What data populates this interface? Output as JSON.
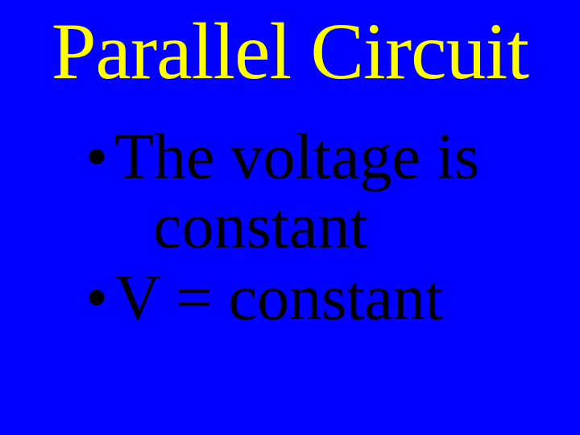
{
  "slide": {
    "background_color": "#0000ff",
    "title": {
      "text": "Parallel Circuit",
      "color": "#ffff00",
      "font_family": "Times New Roman",
      "font_size_pt": 54
    },
    "bullets": [
      {
        "marker": "•",
        "line1": "The voltage is",
        "line2": "constant",
        "color": "#000000",
        "font_size_pt": 42
      },
      {
        "marker": "•",
        "text": "V  =  constant",
        "color": "#000000",
        "font_size_pt": 42
      }
    ]
  }
}
